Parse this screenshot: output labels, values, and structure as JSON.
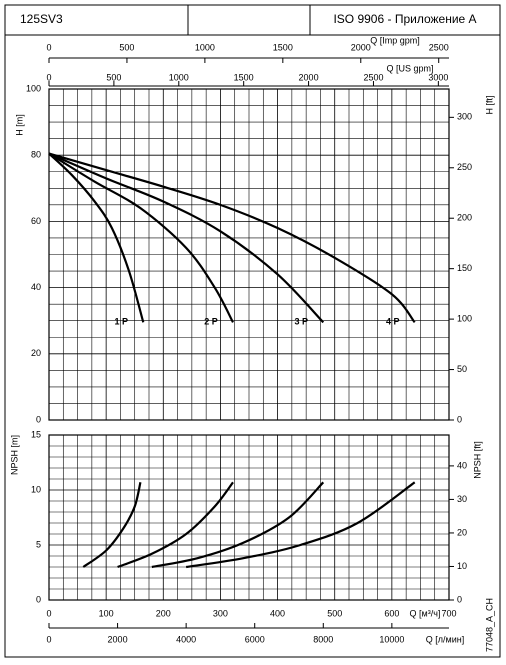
{
  "header": {
    "model": "125SV3",
    "standard": "ISO 9906 - Приложение A"
  },
  "code": "77048_A_CH",
  "chart_data": [
    {
      "type": "line",
      "ylabel": "H [m]",
      "y2label": "H [ft]",
      "xlim": [
        0,
        700
      ],
      "xticks": [
        0,
        100,
        200,
        300,
        400,
        500,
        600,
        700
      ],
      "ylim": [
        0,
        100
      ],
      "yticks": [
        0,
        20,
        40,
        60,
        80,
        100
      ],
      "y2lim": [
        0,
        328.084
      ],
      "y2ticks": [
        0,
        50,
        100,
        150,
        200,
        250,
        300
      ],
      "grid": true,
      "top_axes": [
        {
          "label": "Q [Imp gpm]",
          "xlim": [
            0,
            2566
          ],
          "xticks": [
            0,
            500,
            1000,
            1500,
            2000,
            2500
          ]
        },
        {
          "label": "Q [US gpm]",
          "xlim": [
            0,
            3082
          ],
          "xticks": [
            0,
            500,
            1000,
            1500,
            2000,
            2500,
            3000
          ]
        }
      ],
      "series": [
        {
          "name": "1 P",
          "color": "#000000",
          "x": [
            0,
            40,
            80,
            110,
            140,
            165
          ],
          "values": [
            80.5,
            74,
            66,
            58,
            45,
            29.5
          ]
        },
        {
          "name": "2 P",
          "color": "#000000",
          "x": [
            0,
            80,
            160,
            240,
            290,
            322
          ],
          "values": [
            80.5,
            72,
            64,
            52,
            40,
            29.5
          ]
        },
        {
          "name": "3 P",
          "color": "#000000",
          "x": [
            0,
            100,
            200,
            300,
            400,
            480
          ],
          "values": [
            80.5,
            73,
            66,
            57,
            44,
            29.5
          ]
        },
        {
          "name": "4 P",
          "color": "#000000",
          "x": [
            0,
            100,
            200,
            300,
            400,
            500,
            600,
            640
          ],
          "values": [
            80.5,
            75.5,
            70.5,
            65,
            58,
            49,
            38,
            29.5
          ]
        }
      ]
    },
    {
      "type": "line",
      "ylabel": "NPSH [m]",
      "y2label": "NPSH [ft]",
      "xlabel": "Q [м³/ч]",
      "xlim": [
        0,
        700
      ],
      "xticks": [
        0,
        100,
        200,
        300,
        400,
        500,
        600,
        700
      ],
      "ylim": [
        0,
        15
      ],
      "yticks": [
        0,
        5,
        10,
        15
      ],
      "y2lim": [
        0,
        49.2126
      ],
      "y2ticks": [
        0,
        10,
        20,
        30,
        40
      ],
      "grid": true,
      "bottom_axis": {
        "label": "Q [л/мин]",
        "xlim": [
          0,
          11666.7
        ],
        "xticks": [
          0,
          2000,
          4000,
          6000,
          8000,
          10000
        ]
      },
      "series": [
        {
          "color": "#000000",
          "x": [
            60,
            100,
            130,
            150,
            160
          ],
          "values": [
            3,
            4.5,
            6.5,
            8.5,
            10.7
          ]
        },
        {
          "color": "#000000",
          "x": [
            120,
            180,
            240,
            290,
            322
          ],
          "values": [
            3,
            4.2,
            6,
            8.5,
            10.7
          ]
        },
        {
          "color": "#000000",
          "x": [
            180,
            260,
            340,
            420,
            480
          ],
          "values": [
            3,
            3.8,
            5.2,
            7.5,
            10.7
          ]
        },
        {
          "color": "#000000",
          "x": [
            240,
            340,
            440,
            540,
            640
          ],
          "values": [
            3,
            3.8,
            5,
            7,
            10.7
          ]
        }
      ]
    }
  ]
}
